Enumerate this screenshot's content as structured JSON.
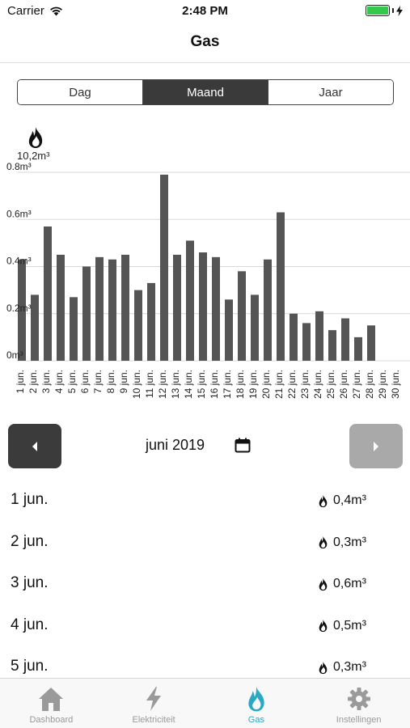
{
  "status_bar": {
    "carrier": "Carrier",
    "time": "2:48 PM",
    "battery_level": 1.0
  },
  "nav": {
    "title": "Gas"
  },
  "segments": [
    {
      "label": "Dag",
      "active": false
    },
    {
      "label": "Maand",
      "active": true
    },
    {
      "label": "Jaar",
      "active": false
    }
  ],
  "chart_total": "10,2m³",
  "chart_data": {
    "type": "bar",
    "title": "",
    "xlabel": "",
    "ylabel": "",
    "ylim": [
      0,
      0.8
    ],
    "yticks": [
      "0m³",
      "0.2m³",
      "0.4m³",
      "0.6m³",
      "0.8m³"
    ],
    "grid": true,
    "bar_color": "#555555",
    "categories": [
      "1 jun.",
      "2 jun.",
      "3 jun.",
      "4 jun.",
      "5 jun.",
      "6 jun.",
      "7 jun.",
      "8 jun.",
      "9 jun.",
      "10 jun.",
      "11 jun.",
      "12 jun.",
      "13 jun.",
      "14 jun.",
      "15 jun.",
      "16 jun.",
      "17 jun.",
      "18 jun.",
      "19 jun.",
      "20 jun.",
      "21 jun.",
      "22 jun.",
      "23 jun.",
      "24 jun.",
      "25 jun.",
      "26 jun.",
      "27 jun.",
      "28 jun.",
      "29 jun.",
      "30 jun."
    ],
    "values": [
      0.43,
      0.28,
      0.57,
      0.45,
      0.27,
      0.4,
      0.44,
      0.43,
      0.45,
      0.3,
      0.33,
      0.79,
      0.45,
      0.51,
      0.46,
      0.44,
      0.26,
      0.38,
      0.28,
      0.43,
      0.63,
      0.2,
      0.16,
      0.21,
      0.13,
      0.18,
      0.1,
      0.15,
      0,
      0
    ]
  },
  "month_nav": {
    "label": "juni 2019",
    "prev_icon": "caret-left-icon",
    "next_icon": "caret-right-icon",
    "next_enabled": false
  },
  "list": [
    {
      "date": "1 jun.",
      "value": "0,4m³"
    },
    {
      "date": "2 jun.",
      "value": "0,3m³"
    },
    {
      "date": "3 jun.",
      "value": "0,6m³"
    },
    {
      "date": "4 jun.",
      "value": "0,5m³"
    },
    {
      "date": "5 jun.",
      "value": "0,3m³"
    }
  ],
  "tabs": [
    {
      "label": "Dashboard",
      "icon": "house-icon",
      "active": false
    },
    {
      "label": "Elektriciteit",
      "icon": "lightning-icon",
      "active": false
    },
    {
      "label": "Gas",
      "icon": "flame-icon",
      "active": true
    },
    {
      "label": "Instellingen",
      "icon": "gear-icon",
      "active": false
    }
  ],
  "colors": {
    "accent": "#2aa9c4",
    "tab_inactive": "#9a9a9a",
    "dark_button": "#3b3b3b",
    "disabled_button": "#a9a9a9",
    "battery": "#33c94a"
  }
}
